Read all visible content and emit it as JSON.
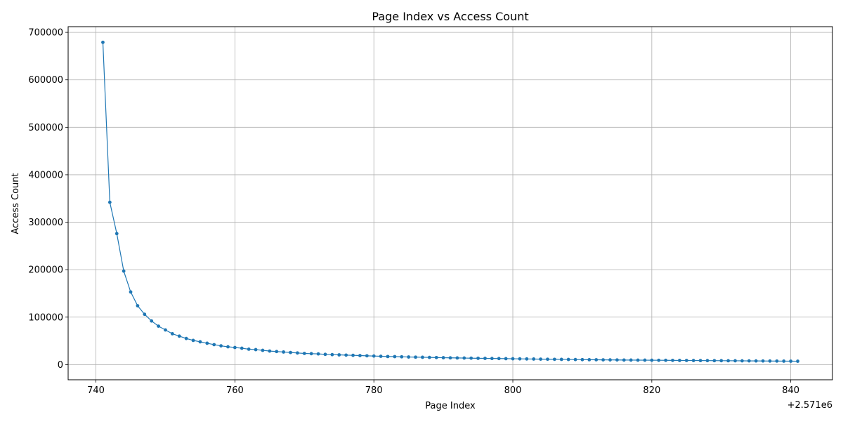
{
  "chart_data": {
    "type": "line",
    "title": "Page Index vs Access Count",
    "xlabel": "Page Index",
    "ylabel": "Access Count",
    "x_offset_text": "+2.571e6",
    "xlim": [
      736,
      846
    ],
    "ylim": [
      -32000,
      712000
    ],
    "x_ticks": [
      740,
      760,
      780,
      800,
      820,
      840
    ],
    "y_ticks": [
      0,
      100000,
      200000,
      300000,
      400000,
      500000,
      600000,
      700000
    ],
    "grid": true,
    "marker": "circle",
    "color": "#1f77b4",
    "x": [
      741,
      742,
      743,
      744,
      745,
      746,
      747,
      748,
      749,
      750,
      751,
      752,
      753,
      754,
      755,
      756,
      757,
      758,
      759,
      760,
      761,
      762,
      763,
      764,
      765,
      766,
      767,
      768,
      769,
      770,
      771,
      772,
      773,
      774,
      775,
      776,
      777,
      778,
      779,
      780,
      781,
      782,
      783,
      784,
      785,
      786,
      787,
      788,
      789,
      790,
      791,
      792,
      793,
      794,
      795,
      796,
      797,
      798,
      799,
      800,
      801,
      802,
      803,
      804,
      805,
      806,
      807,
      808,
      809,
      810,
      811,
      812,
      813,
      814,
      815,
      816,
      817,
      818,
      819,
      820,
      821,
      822,
      823,
      824,
      825,
      826,
      827,
      828,
      829,
      830,
      831,
      832,
      833,
      834,
      835,
      836,
      837,
      838,
      839,
      840,
      841
    ],
    "y": [
      679000,
      342000,
      276000,
      197000,
      153000,
      124000,
      106000,
      92000,
      81000,
      73000,
      65000,
      60000,
      55000,
      51000,
      48000,
      45000,
      42000,
      39500,
      37500,
      36000,
      34500,
      32500,
      31500,
      30000,
      28500,
      27500,
      26500,
      25500,
      24500,
      23500,
      23000,
      22500,
      21500,
      21000,
      20500,
      20000,
      19500,
      19000,
      18500,
      18000,
      17500,
      17000,
      16800,
      16400,
      16000,
      15700,
      15400,
      15100,
      14800,
      14500,
      14200,
      14000,
      13800,
      13500,
      13300,
      13100,
      12900,
      12700,
      12500,
      12300,
      12100,
      11900,
      11700,
      11500,
      11300,
      11100,
      11000,
      10800,
      10600,
      10400,
      10300,
      10200,
      10000,
      9900,
      9800,
      9600,
      9500,
      9400,
      9300,
      9200,
      9100,
      9000,
      8900,
      8800,
      8700,
      8600,
      8500,
      8400,
      8300,
      8200,
      8100,
      8000,
      7900,
      7800,
      7700,
      7600,
      7500,
      7400,
      7300,
      7200,
      7100
    ]
  }
}
